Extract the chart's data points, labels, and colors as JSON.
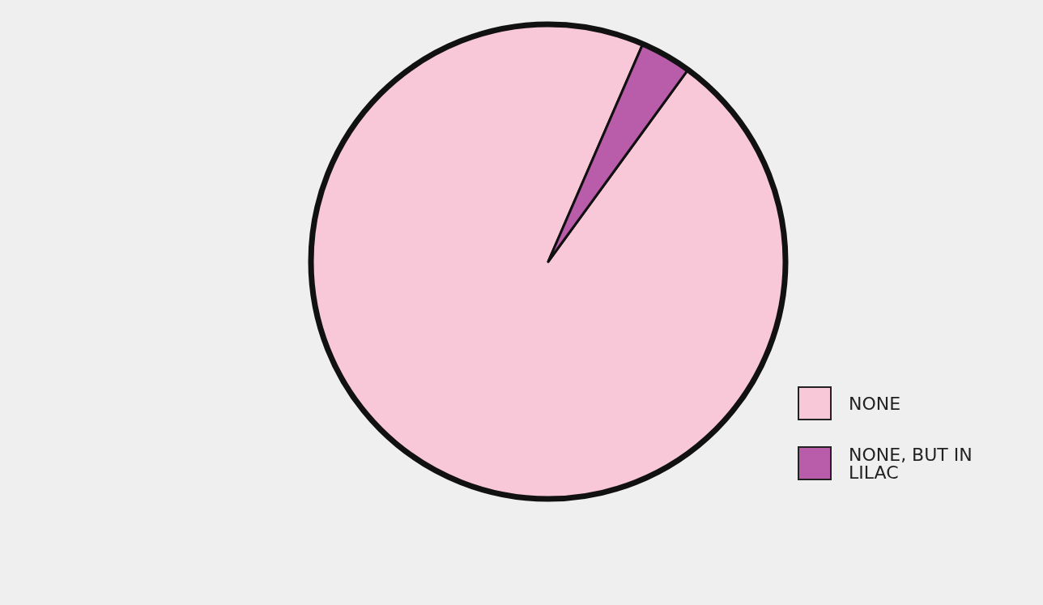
{
  "chart_data": {
    "type": "pie",
    "categories": [
      "NONE",
      "NONE, BUT IN LILAC"
    ],
    "values": [
      96.5,
      3.5
    ],
    "colors": [
      "#f9c8d8",
      "#b95ca9"
    ],
    "legend": "bottom right"
  }
}
